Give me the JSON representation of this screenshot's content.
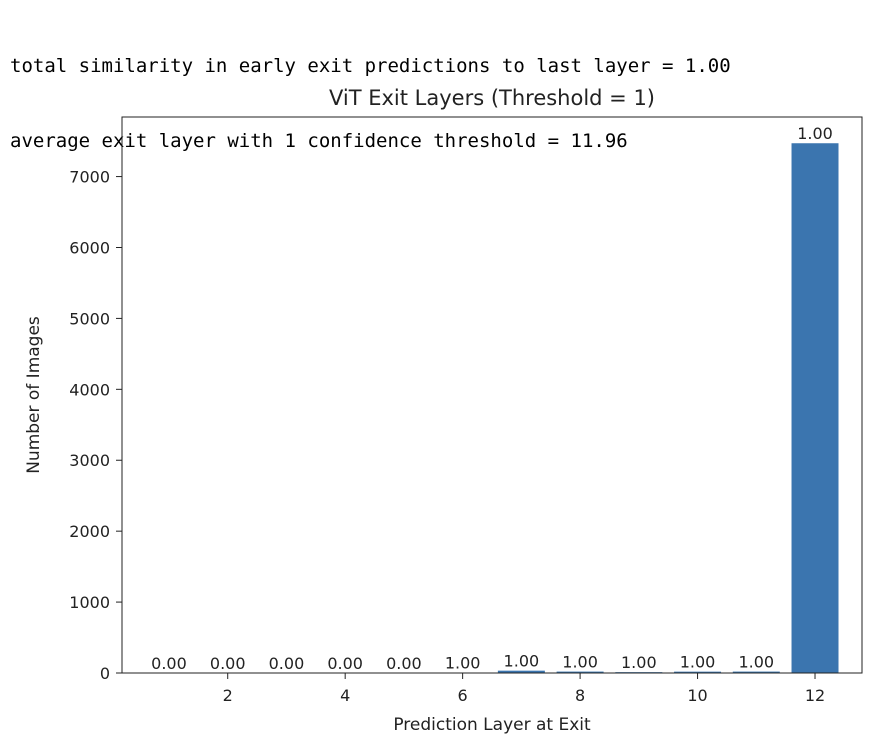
{
  "console": {
    "line1": "total similarity in early exit predictions to last layer = 1.00",
    "line2": "average exit layer with 1 confidence threshold = 11.96"
  },
  "chart_data": {
    "type": "bar",
    "title": "ViT Exit Layers (Threshold = 1)",
    "xlabel": "Prediction Layer at Exit",
    "ylabel": "Number of Images",
    "x": [
      1,
      2,
      3,
      4,
      5,
      6,
      7,
      8,
      9,
      10,
      11,
      12
    ],
    "values": [
      0,
      0,
      0,
      0,
      0,
      6,
      33,
      20,
      12,
      19,
      20,
      7470
    ],
    "bar_labels": [
      "0.00",
      "0.00",
      "0.00",
      "0.00",
      "0.00",
      "1.00",
      "1.00",
      "1.00",
      "1.00",
      "1.00",
      "1.00",
      "1.00"
    ],
    "xticks": [
      2,
      4,
      6,
      8,
      10,
      12
    ],
    "yticks": [
      0,
      1000,
      2000,
      3000,
      4000,
      5000,
      6000,
      7000
    ],
    "xlim": [
      0.2,
      12.8
    ],
    "ylim": [
      0,
      7840
    ],
    "bar_color": "#3b75af",
    "grid": false,
    "legend": false
  }
}
